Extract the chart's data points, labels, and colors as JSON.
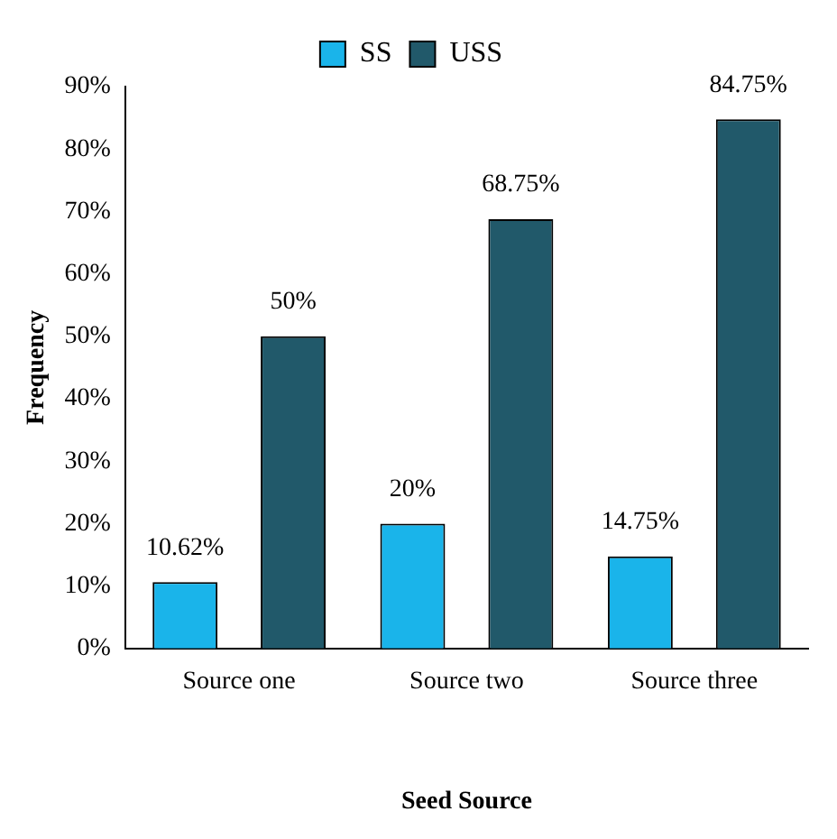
{
  "chart_data": {
    "type": "bar",
    "xlabel": "Seed Source",
    "ylabel": "Frequency",
    "categories": [
      "Source one",
      "Source two",
      "Source three"
    ],
    "series": [
      {
        "name": "SS",
        "color": "#1ab4ea",
        "values": [
          10.62,
          20,
          14.75
        ],
        "value_labels": [
          "10.62%",
          "20%",
          "14.75%"
        ]
      },
      {
        "name": "USS",
        "color": "#21596a",
        "values": [
          50,
          68.75,
          84.75
        ],
        "value_labels": [
          "50%",
          "68.75%",
          "84.75%"
        ]
      }
    ],
    "ylim": [
      0,
      90
    ],
    "yticks": [
      {
        "value": 0,
        "label": "0%"
      },
      {
        "value": 10,
        "label": "10%"
      },
      {
        "value": 20,
        "label": "20%"
      },
      {
        "value": 30,
        "label": "30%"
      },
      {
        "value": 40,
        "label": "40%"
      },
      {
        "value": 50,
        "label": "50%"
      },
      {
        "value": 60,
        "label": "60%"
      },
      {
        "value": 70,
        "label": "70%"
      },
      {
        "value": 80,
        "label": "80%"
      },
      {
        "value": 90,
        "label": "90%"
      }
    ],
    "grid": false,
    "legend": "top"
  }
}
